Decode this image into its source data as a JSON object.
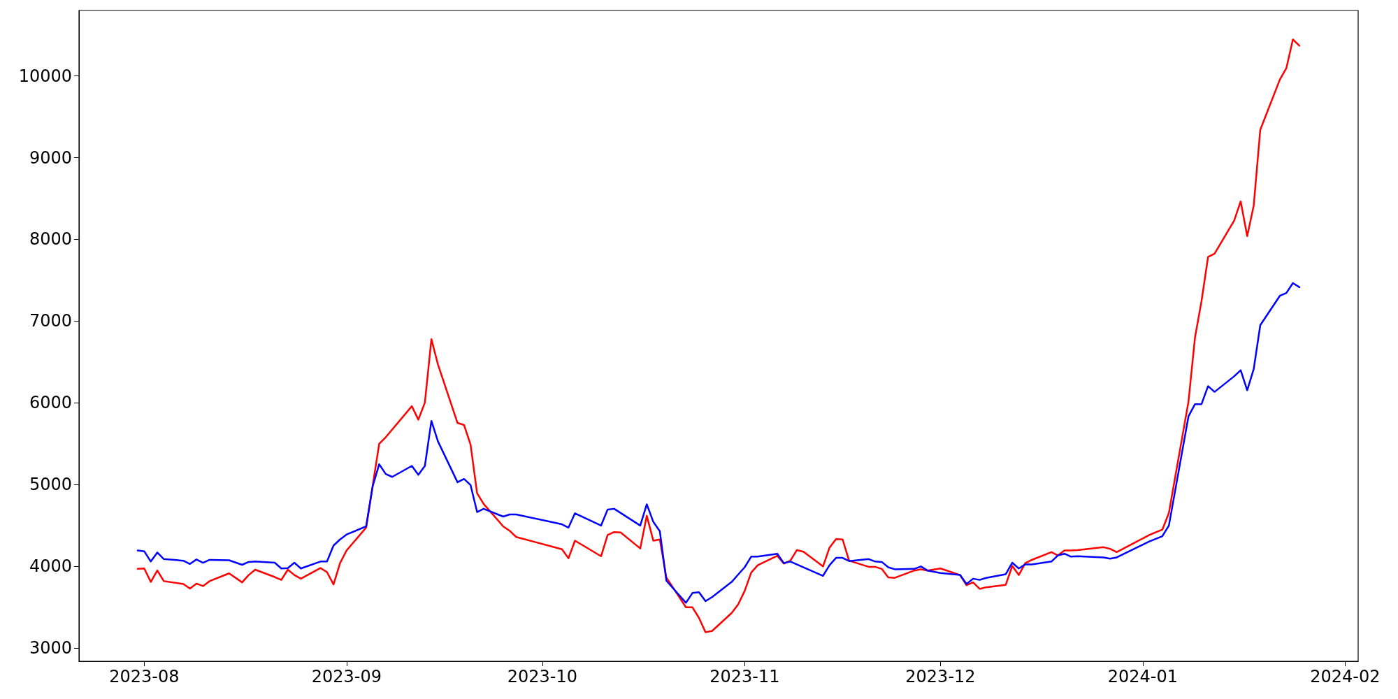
{
  "chart_data": {
    "type": "line",
    "xlim": [
      "2023-07-22",
      "2024-02-03"
    ],
    "xticks": [
      "2023-08",
      "2023-09",
      "2023-10",
      "2023-11",
      "2023-12",
      "2024-01",
      "2024-02"
    ],
    "ylim": [
      2840,
      10800
    ],
    "yticks": [
      3000,
      4000,
      5000,
      6000,
      7000,
      8000,
      9000,
      10000
    ],
    "grid": false,
    "series": [
      {
        "color": "#ff0000",
        "x": [
          "2023-07-31",
          "2023-08-01",
          "2023-08-02",
          "2023-08-03",
          "2023-08-04",
          "2023-08-07",
          "2023-08-08",
          "2023-08-09",
          "2023-08-10",
          "2023-08-11",
          "2023-08-14",
          "2023-08-16",
          "2023-08-17",
          "2023-08-18",
          "2023-08-21",
          "2023-08-22",
          "2023-08-23",
          "2023-08-24",
          "2023-08-25",
          "2023-08-28",
          "2023-08-29",
          "2023-08-30",
          "2023-08-31",
          "2023-09-01",
          "2023-09-04",
          "2023-09-06",
          "2023-09-07",
          "2023-09-11",
          "2023-09-12",
          "2023-09-13",
          "2023-09-14",
          "2023-09-15",
          "2023-09-18",
          "2023-09-19",
          "2023-09-20",
          "2023-09-21",
          "2023-09-22",
          "2023-09-25",
          "2023-09-26",
          "2023-09-27",
          "2023-10-04",
          "2023-10-05",
          "2023-10-06",
          "2023-10-10",
          "2023-10-11",
          "2023-10-12",
          "2023-10-13",
          "2023-10-16",
          "2023-10-17",
          "2023-10-18",
          "2023-10-19",
          "2023-10-20",
          "2023-10-23",
          "2023-10-24",
          "2023-10-25",
          "2023-10-26",
          "2023-10-27",
          "2023-10-30",
          "2023-10-31",
          "2023-11-01",
          "2023-11-02",
          "2023-11-03",
          "2023-11-06",
          "2023-11-07",
          "2023-11-08",
          "2023-11-09",
          "2023-11-10",
          "2023-11-13",
          "2023-11-14",
          "2023-11-15",
          "2023-11-16",
          "2023-11-17",
          "2023-11-20",
          "2023-11-21",
          "2023-11-22",
          "2023-11-23",
          "2023-11-24",
          "2023-11-27",
          "2023-11-28",
          "2023-11-29",
          "2023-12-01",
          "2023-12-04",
          "2023-12-05",
          "2023-12-06",
          "2023-12-07",
          "2023-12-08",
          "2023-12-11",
          "2023-12-12",
          "2023-12-13",
          "2023-12-14",
          "2023-12-15",
          "2023-12-18",
          "2023-12-19",
          "2023-12-20",
          "2023-12-21",
          "2023-12-22",
          "2023-12-26",
          "2023-12-27",
          "2023-12-28",
          "2024-01-02",
          "2024-01-04",
          "2024-01-05",
          "2024-01-08",
          "2024-01-09",
          "2024-01-10",
          "2024-01-11",
          "2024-01-12",
          "2024-01-15",
          "2024-01-16",
          "2024-01-17",
          "2024-01-18",
          "2024-01-19",
          "2024-01-22",
          "2024-01-23",
          "2024-01-24",
          "2024-01-25"
        ],
        "values": [
          3970,
          3975,
          3810,
          3950,
          3820,
          3785,
          3730,
          3790,
          3760,
          3820,
          3915,
          3805,
          3895,
          3960,
          3870,
          3835,
          3960,
          3895,
          3850,
          3980,
          3930,
          3780,
          4040,
          4195,
          4475,
          5500,
          5580,
          5960,
          5795,
          6005,
          6780,
          6470,
          5755,
          5730,
          5490,
          4895,
          4765,
          4490,
          4435,
          4360,
          4210,
          4100,
          4315,
          4125,
          4385,
          4420,
          4415,
          4220,
          4620,
          4315,
          4330,
          3865,
          3500,
          3500,
          3370,
          3195,
          3210,
          3430,
          3535,
          3700,
          3925,
          4015,
          4130,
          4035,
          4070,
          4200,
          4180,
          4000,
          4230,
          4335,
          4330,
          4070,
          3995,
          3995,
          3970,
          3865,
          3860,
          3950,
          3965,
          3950,
          3975,
          3895,
          3770,
          3805,
          3725,
          3745,
          3775,
          4005,
          3895,
          4040,
          4080,
          4175,
          4135,
          4195,
          4195,
          4200,
          4235,
          4215,
          4175,
          4385,
          4450,
          4655,
          6015,
          6800,
          7245,
          7785,
          7825,
          8230,
          8465,
          8040,
          8415,
          9340,
          9955,
          10095,
          10445,
          10370
        ]
      },
      {
        "color": "#0000ff",
        "x": [
          "2023-07-31",
          "2023-08-01",
          "2023-08-02",
          "2023-08-03",
          "2023-08-04",
          "2023-08-07",
          "2023-08-08",
          "2023-08-09",
          "2023-08-10",
          "2023-08-11",
          "2023-08-14",
          "2023-08-16",
          "2023-08-17",
          "2023-08-18",
          "2023-08-21",
          "2023-08-22",
          "2023-08-23",
          "2023-08-24",
          "2023-08-25",
          "2023-08-28",
          "2023-08-29",
          "2023-08-30",
          "2023-08-31",
          "2023-09-01",
          "2023-09-04",
          "2023-09-05",
          "2023-09-06",
          "2023-09-07",
          "2023-09-08",
          "2023-09-11",
          "2023-09-12",
          "2023-09-13",
          "2023-09-14",
          "2023-09-15",
          "2023-09-18",
          "2023-09-19",
          "2023-09-20",
          "2023-09-21",
          "2023-09-22",
          "2023-09-25",
          "2023-09-26",
          "2023-09-27",
          "2023-10-04",
          "2023-10-05",
          "2023-10-06",
          "2023-10-10",
          "2023-10-11",
          "2023-10-12",
          "2023-10-16",
          "2023-10-17",
          "2023-10-18",
          "2023-10-19",
          "2023-10-20",
          "2023-10-23",
          "2023-10-24",
          "2023-10-25",
          "2023-10-26",
          "2023-10-27",
          "2023-10-30",
          "2023-10-31",
          "2023-11-01",
          "2023-11-02",
          "2023-11-03",
          "2023-11-06",
          "2023-11-07",
          "2023-11-08",
          "2023-11-13",
          "2023-11-14",
          "2023-11-15",
          "2023-11-16",
          "2023-11-17",
          "2023-11-20",
          "2023-11-21",
          "2023-11-22",
          "2023-11-23",
          "2023-11-24",
          "2023-11-27",
          "2023-11-28",
          "2023-11-29",
          "2023-12-01",
          "2023-12-04",
          "2023-12-05",
          "2023-12-06",
          "2023-12-07",
          "2023-12-08",
          "2023-12-11",
          "2023-12-12",
          "2023-12-13",
          "2023-12-14",
          "2023-12-15",
          "2023-12-18",
          "2023-12-19",
          "2023-12-20",
          "2023-12-21",
          "2023-12-22",
          "2023-12-26",
          "2023-12-27",
          "2023-12-28",
          "2024-01-02",
          "2024-01-04",
          "2024-01-05",
          "2024-01-08",
          "2024-01-09",
          "2024-01-10",
          "2024-01-11",
          "2024-01-12",
          "2024-01-15",
          "2024-01-16",
          "2024-01-17",
          "2024-01-18",
          "2024-01-19",
          "2024-01-22",
          "2024-01-23",
          "2024-01-24",
          "2024-01-25"
        ],
        "values": [
          4195,
          4185,
          4060,
          4170,
          4090,
          4070,
          4030,
          4085,
          4045,
          4080,
          4075,
          4020,
          4055,
          4060,
          4045,
          3975,
          3980,
          4045,
          3975,
          4060,
          4060,
          4255,
          4330,
          4390,
          4490,
          4980,
          5250,
          5130,
          5095,
          5230,
          5120,
          5230,
          5780,
          5530,
          5030,
          5070,
          4995,
          4665,
          4705,
          4610,
          4635,
          4635,
          4515,
          4475,
          4650,
          4500,
          4695,
          4705,
          4500,
          4760,
          4545,
          4430,
          3825,
          3555,
          3675,
          3685,
          3575,
          3625,
          3810,
          3900,
          3990,
          4120,
          4120,
          4155,
          4040,
          4060,
          3885,
          4015,
          4105,
          4105,
          4065,
          4090,
          4060,
          4055,
          3990,
          3965,
          3970,
          4000,
          3950,
          3920,
          3895,
          3785,
          3850,
          3835,
          3860,
          3905,
          4045,
          3975,
          4025,
          4025,
          4060,
          4135,
          4155,
          4120,
          4125,
          4110,
          4095,
          4110,
          4305,
          4370,
          4500,
          5835,
          5985,
          5985,
          6205,
          6135,
          6325,
          6400,
          6155,
          6415,
          6950,
          7310,
          7345,
          7465,
          7415
        ]
      }
    ]
  }
}
